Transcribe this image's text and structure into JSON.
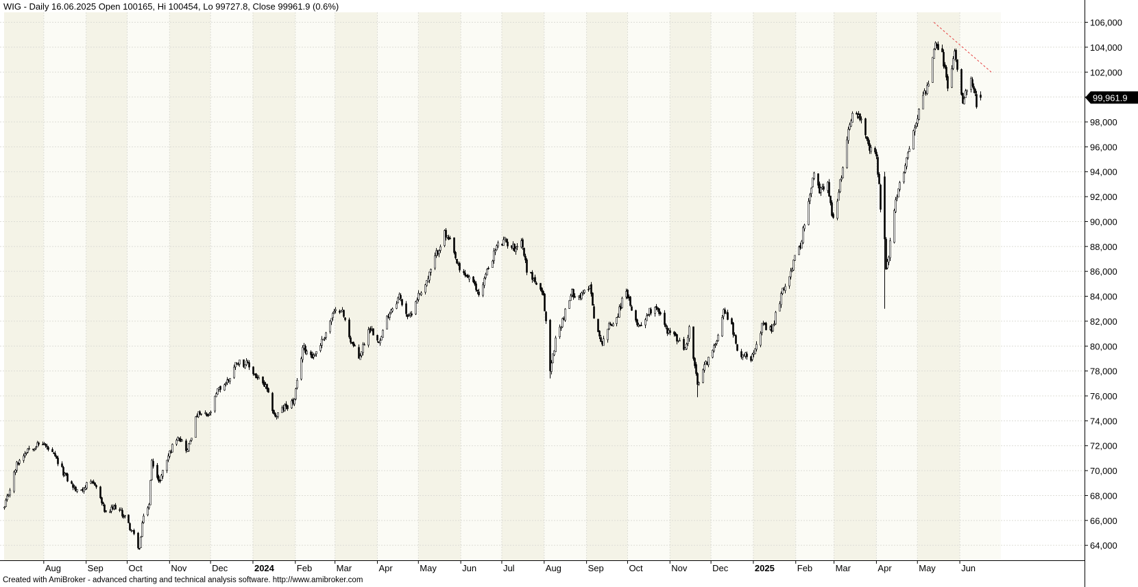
{
  "header": {
    "title": "WIG - Daily 16.06.2025 Open 100165, Hi 100454, Lo 99727.8, Close 99961.9 (0.6%)"
  },
  "footer": {
    "credit": "Created with AmiBroker - advanced charting and technical analysis software. http://www.amibroker.com"
  },
  "chart_data": {
    "type": "candlestick",
    "symbol": "WIG",
    "interval": "Daily",
    "last_bar": {
      "date": "16.06.2025",
      "open": 100165,
      "high": 100454,
      "low": 99727.8,
      "close": 99961.9,
      "change": "0.6%"
    },
    "last_price_label": "99,961.9",
    "grid": true,
    "y_axis": {
      "side": "right",
      "range": [
        62800,
        106800
      ],
      "ticks": [
        64000,
        66000,
        68000,
        70000,
        72000,
        74000,
        76000,
        78000,
        80000,
        82000,
        84000,
        86000,
        88000,
        90000,
        92000,
        94000,
        96000,
        98000,
        100000,
        102000,
        104000,
        106000
      ],
      "tick_labels": [
        "64,000",
        "66,000",
        "68,000",
        "70,000",
        "72,000",
        "74,000",
        "76,000",
        "78,000",
        "80,000",
        "82,000",
        "84,000",
        "86,000",
        "88,000",
        "90,000",
        "92,000",
        "94,000",
        "96,000",
        "98,000",
        "100,000",
        "102,000",
        "104,000",
        "106,000"
      ]
    },
    "x_axis": {
      "start": "2023-07-03",
      "end": "2025-06-16",
      "month_labels": [
        "Aug",
        "Sep",
        "Oct",
        "Nov",
        "Dec",
        "2024",
        "Feb",
        "Mar",
        "Apr",
        "May",
        "Jun",
        "Jul",
        "Aug",
        "Sep",
        "Oct",
        "Nov",
        "Dec",
        "2025",
        "Feb",
        "Mar",
        "Apr",
        "May",
        "Jun"
      ],
      "bold_labels": [
        "2024",
        "2025"
      ]
    },
    "price_path": [
      [
        "2023-07-03",
        67000
      ],
      [
        "2023-07-12",
        70500
      ],
      [
        "2023-07-20",
        71800
      ],
      [
        "2023-07-31",
        72200
      ],
      [
        "2023-08-08",
        71200
      ],
      [
        "2023-08-18",
        69300
      ],
      [
        "2023-08-25",
        68300
      ],
      [
        "2023-09-01",
        68800
      ],
      [
        "2023-09-07",
        69000
      ],
      [
        "2023-09-15",
        66500
      ],
      [
        "2023-09-22",
        67100
      ],
      [
        "2023-09-29",
        66300
      ],
      [
        "2023-10-06",
        64800
      ],
      [
        "2023-10-10",
        63700
      ],
      [
        "2023-10-13",
        66500
      ],
      [
        "2023-10-17",
        67200
      ],
      [
        "2023-10-19",
        71000
      ],
      [
        "2023-10-24",
        69000
      ],
      [
        "2023-10-31",
        71200
      ],
      [
        "2023-11-07",
        72900
      ],
      [
        "2023-11-14",
        71600
      ],
      [
        "2023-11-21",
        74500
      ],
      [
        "2023-11-30",
        74400
      ],
      [
        "2023-12-06",
        76400
      ],
      [
        "2023-12-14",
        77300
      ],
      [
        "2023-12-20",
        78800
      ],
      [
        "2023-12-28",
        78500
      ],
      [
        "2024-01-04",
        77400
      ],
      [
        "2024-01-10",
        76700
      ],
      [
        "2024-01-17",
        74300
      ],
      [
        "2024-01-23",
        75000
      ],
      [
        "2024-01-31",
        75600
      ],
      [
        "2024-02-06",
        79900
      ],
      [
        "2024-02-14",
        79200
      ],
      [
        "2024-02-21",
        80600
      ],
      [
        "2024-02-28",
        82500
      ],
      [
        "2024-03-05",
        83100
      ],
      [
        "2024-03-12",
        80500
      ],
      [
        "2024-03-18",
        79000
      ],
      [
        "2024-03-26",
        81600
      ],
      [
        "2024-04-03",
        80400
      ],
      [
        "2024-04-09",
        82600
      ],
      [
        "2024-04-17",
        84000
      ],
      [
        "2024-04-24",
        82200
      ],
      [
        "2024-04-30",
        83900
      ],
      [
        "2024-05-08",
        85400
      ],
      [
        "2024-05-14",
        87400
      ],
      [
        "2024-05-20",
        89000
      ],
      [
        "2024-05-24",
        88300
      ],
      [
        "2024-05-31",
        86000
      ],
      [
        "2024-06-07",
        85500
      ],
      [
        "2024-06-14",
        84200
      ],
      [
        "2024-06-20",
        86000
      ],
      [
        "2024-06-27",
        88000
      ],
      [
        "2024-07-03",
        88400
      ],
      [
        "2024-07-10",
        87900
      ],
      [
        "2024-07-15",
        88500
      ],
      [
        "2024-07-19",
        86200
      ],
      [
        "2024-07-25",
        85200
      ],
      [
        "2024-07-31",
        83900
      ],
      [
        "2024-08-02",
        82000
      ],
      [
        "2024-08-05",
        78000
      ],
      [
        "2024-08-09",
        80500
      ],
      [
        "2024-08-14",
        82100
      ],
      [
        "2024-08-21",
        84300
      ],
      [
        "2024-08-28",
        84000
      ],
      [
        "2024-09-03",
        85000
      ],
      [
        "2024-09-06",
        82500
      ],
      [
        "2024-09-11",
        80200
      ],
      [
        "2024-09-17",
        81600
      ],
      [
        "2024-09-23",
        82300
      ],
      [
        "2024-09-30",
        84600
      ],
      [
        "2024-10-04",
        82600
      ],
      [
        "2024-10-10",
        81600
      ],
      [
        "2024-10-16",
        82700
      ],
      [
        "2024-10-22",
        83300
      ],
      [
        "2024-10-29",
        81400
      ],
      [
        "2024-11-05",
        80700
      ],
      [
        "2024-11-12",
        79700
      ],
      [
        "2024-11-15",
        81400
      ],
      [
        "2024-11-21",
        76800
      ],
      [
        "2024-11-27",
        78600
      ],
      [
        "2024-12-03",
        79800
      ],
      [
        "2024-12-10",
        82900
      ],
      [
        "2024-12-16",
        81800
      ],
      [
        "2024-12-20",
        79500
      ],
      [
        "2024-12-30",
        79100
      ],
      [
        "2025-01-07",
        81600
      ],
      [
        "2025-01-14",
        81200
      ],
      [
        "2025-01-21",
        84100
      ],
      [
        "2025-01-28",
        86100
      ],
      [
        "2025-02-04",
        88200
      ],
      [
        "2025-02-10",
        91400
      ],
      [
        "2025-02-14",
        93900
      ],
      [
        "2025-02-18",
        92400
      ],
      [
        "2025-02-24",
        93400
      ],
      [
        "2025-02-27",
        90200
      ],
      [
        "2025-03-04",
        92300
      ],
      [
        "2025-03-10",
        96800
      ],
      [
        "2025-03-14",
        98800
      ],
      [
        "2025-03-20",
        98300
      ],
      [
        "2025-03-26",
        96000
      ],
      [
        "2025-04-01",
        95200
      ],
      [
        "2025-04-03",
        93000
      ],
      [
        "2025-04-07",
        85600
      ],
      [
        "2025-04-10",
        87400
      ],
      [
        "2025-04-15",
        91500
      ],
      [
        "2025-04-22",
        94700
      ],
      [
        "2025-04-28",
        97200
      ],
      [
        "2025-05-05",
        100200
      ],
      [
        "2025-05-09",
        101000
      ],
      [
        "2025-05-14",
        104200
      ],
      [
        "2025-05-19",
        103400
      ],
      [
        "2025-05-23",
        100800
      ],
      [
        "2025-05-28",
        103600
      ],
      [
        "2025-06-03",
        99800
      ],
      [
        "2025-06-09",
        101800
      ],
      [
        "2025-06-13",
        99500
      ],
      [
        "2025-06-16",
        99962
      ]
    ],
    "trendline": {
      "style": "dashed",
      "color": "#e53c3c",
      "from": [
        "2025-05-13",
        106000
      ],
      "to": [
        "2025-06-24",
        102000
      ]
    }
  },
  "colors": {
    "band_light": "#fbfbf5",
    "band_dark": "#f4f3e7",
    "grid": "#dcdcd5",
    "candle": "#000000",
    "price_label_bg": "#000000",
    "price_label_text": "#ffffff"
  }
}
